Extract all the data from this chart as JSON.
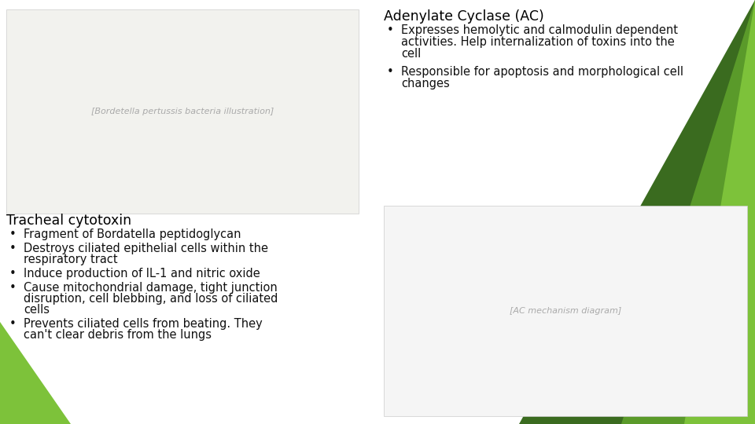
{
  "bg_color": "#ffffff",
  "green_dark": "#3a6b1f",
  "green_mid": "#5a9a2a",
  "green_light": "#7dc23a",
  "title_ac": "Adenylate Cyclase (AC)",
  "bullets_ac": [
    "Expresses hemolytic and calmodulin dependent\nactivities. Help internalization of toxins into the\ncell",
    "Responsible for apoptosis and morphological cell\nchanges"
  ],
  "title_tct": "Tracheal cytotoxin",
  "bullets_tct": [
    "Fragment of Bordatella peptidoglycan",
    "Destroys ciliated epithelial cells within the\nrespiratory tract",
    "Induce production of IL-1 and nitric oxide",
    "Cause mitochondrial damage, tight junction\ndisruption, cell blebbing, and loss of ciliated\ncells",
    "Prevents ciliated cells from beating. They\ncan't clear debris from the lungs"
  ],
  "title_fontsize": 12.5,
  "bullet_fontsize": 10.5,
  "font_family": "DejaVu Sans"
}
